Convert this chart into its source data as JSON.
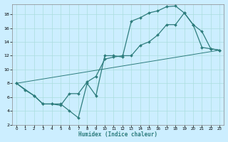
{
  "title": "",
  "xlabel": "Humidex (Indice chaleur)",
  "bg_color": "#cceeff",
  "line_color": "#2e7d7d",
  "grid_color": "#aadddd",
  "xlim": [
    -0.5,
    23.5
  ],
  "ylim": [
    2,
    19.5
  ],
  "xticks": [
    0,
    1,
    2,
    3,
    4,
    5,
    6,
    7,
    8,
    9,
    10,
    11,
    12,
    13,
    14,
    15,
    16,
    17,
    18,
    19,
    20,
    21,
    22,
    23
  ],
  "yticks": [
    2,
    4,
    6,
    8,
    10,
    12,
    14,
    16,
    18
  ],
  "curve1_x": [
    0,
    1,
    2,
    3,
    4,
    5,
    6,
    7,
    8,
    9,
    10,
    11,
    12,
    13,
    14,
    15,
    16,
    17,
    18,
    19,
    20,
    21,
    22,
    23
  ],
  "curve1_y": [
    8,
    7,
    6.2,
    5,
    5,
    5,
    4,
    3,
    8,
    6.2,
    12,
    12,
    11.8,
    17,
    17.5,
    18.2,
    18.5,
    19.1,
    19.2,
    18.2,
    16.5,
    15.5,
    13,
    12.8
  ],
  "curve2_x": [
    0,
    2,
    3,
    4,
    5,
    6,
    7,
    8,
    9,
    10,
    11,
    12,
    13,
    14,
    15,
    16,
    17,
    18,
    19,
    20,
    21,
    22,
    23
  ],
  "curve2_y": [
    8,
    6.2,
    5,
    5,
    4.8,
    6.5,
    6.5,
    8.2,
    9,
    11.5,
    11.8,
    12,
    12,
    13.5,
    14,
    15,
    16.5,
    16.5,
    18.2,
    16.5,
    13.2,
    13,
    12.8
  ],
  "curve3_x": [
    0,
    23
  ],
  "curve3_y": [
    8,
    12.8
  ]
}
